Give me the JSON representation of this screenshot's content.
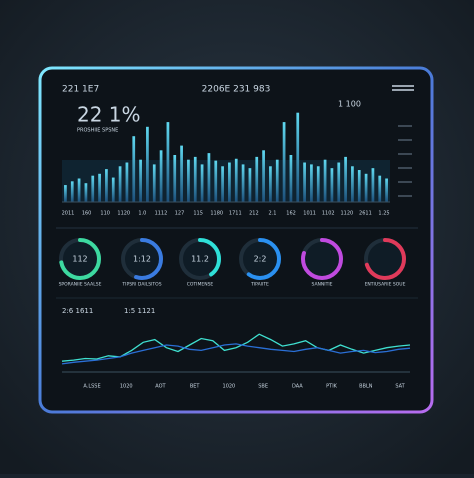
{
  "header": {
    "left": "221 1E7",
    "center": "2206E 231 983"
  },
  "chart_data": [
    {
      "type": "bar",
      "title": "22 1%",
      "subtitle": "1 100",
      "caption": "PROSHIIE SPSNE",
      "values": [
        18,
        22,
        25,
        20,
        28,
        30,
        35,
        26,
        38,
        42,
        70,
        45,
        80,
        40,
        55,
        85,
        50,
        60,
        45,
        48,
        40,
        52,
        44,
        38,
        42,
        46,
        40,
        36,
        48,
        55,
        38,
        45,
        85,
        50,
        95,
        42,
        40,
        38,
        45,
        36,
        42,
        48,
        38,
        34,
        30,
        36,
        28,
        25
      ],
      "x_labels": [
        "2011",
        "160",
        "110",
        "1120",
        "1.0",
        "1112",
        "127",
        "115",
        "1180",
        "1711",
        "212",
        "2.1",
        "162",
        "1011",
        "1102",
        "1120",
        "2611",
        "1.25"
      ],
      "ylim": [
        0,
        100
      ],
      "color": "#2fb8d6"
    },
    {
      "type": "line",
      "title": "2:6 1611",
      "subtitle": "1:5 1121",
      "x_labels": [
        "A.LSSE",
        "1020",
        "AOT",
        "BET",
        "1020",
        "SBE",
        "DAA",
        "PTIK",
        "BBLN",
        "SAT"
      ],
      "ylim": [
        0,
        100
      ],
      "series": [
        {
          "color": "#3fe0d0",
          "values": [
            20,
            22,
            25,
            24,
            30,
            28,
            40,
            55,
            60,
            45,
            38,
            50,
            62,
            58,
            40,
            45,
            55,
            70,
            60,
            48,
            52,
            58,
            45,
            40,
            50,
            42,
            35,
            40,
            45,
            48,
            50
          ]
        },
        {
          "color": "#2a6fd6",
          "values": [
            15,
            18,
            20,
            22,
            25,
            28,
            35,
            40,
            45,
            50,
            48,
            42,
            40,
            45,
            50,
            52,
            48,
            45,
            42,
            40,
            38,
            42,
            45,
            40,
            35,
            38,
            40,
            36,
            38,
            42,
            44
          ]
        }
      ]
    }
  ],
  "gauges": [
    {
      "value": 72,
      "center": "112",
      "caption": "SPORANIIE SAALSE",
      "color": "#3dd9a0"
    },
    {
      "value": 55,
      "center": "1:12",
      "caption": "TIPSRI DAILSITOS",
      "color": "#3a7be0"
    },
    {
      "value": 40,
      "center": "11.2",
      "caption": "COTIMENSE",
      "color": "#2fe0d8"
    },
    {
      "value": 60,
      "center": "2:2",
      "caption": "TIPAIITE",
      "color": "#2a90f0"
    },
    {
      "value": 80,
      "center": "",
      "caption": "SANNITIE",
      "color": "#c04adf"
    },
    {
      "value": 70,
      "center": "",
      "caption": "ENTIUSARIE SOUE",
      "color": "#e03a5a"
    }
  ]
}
